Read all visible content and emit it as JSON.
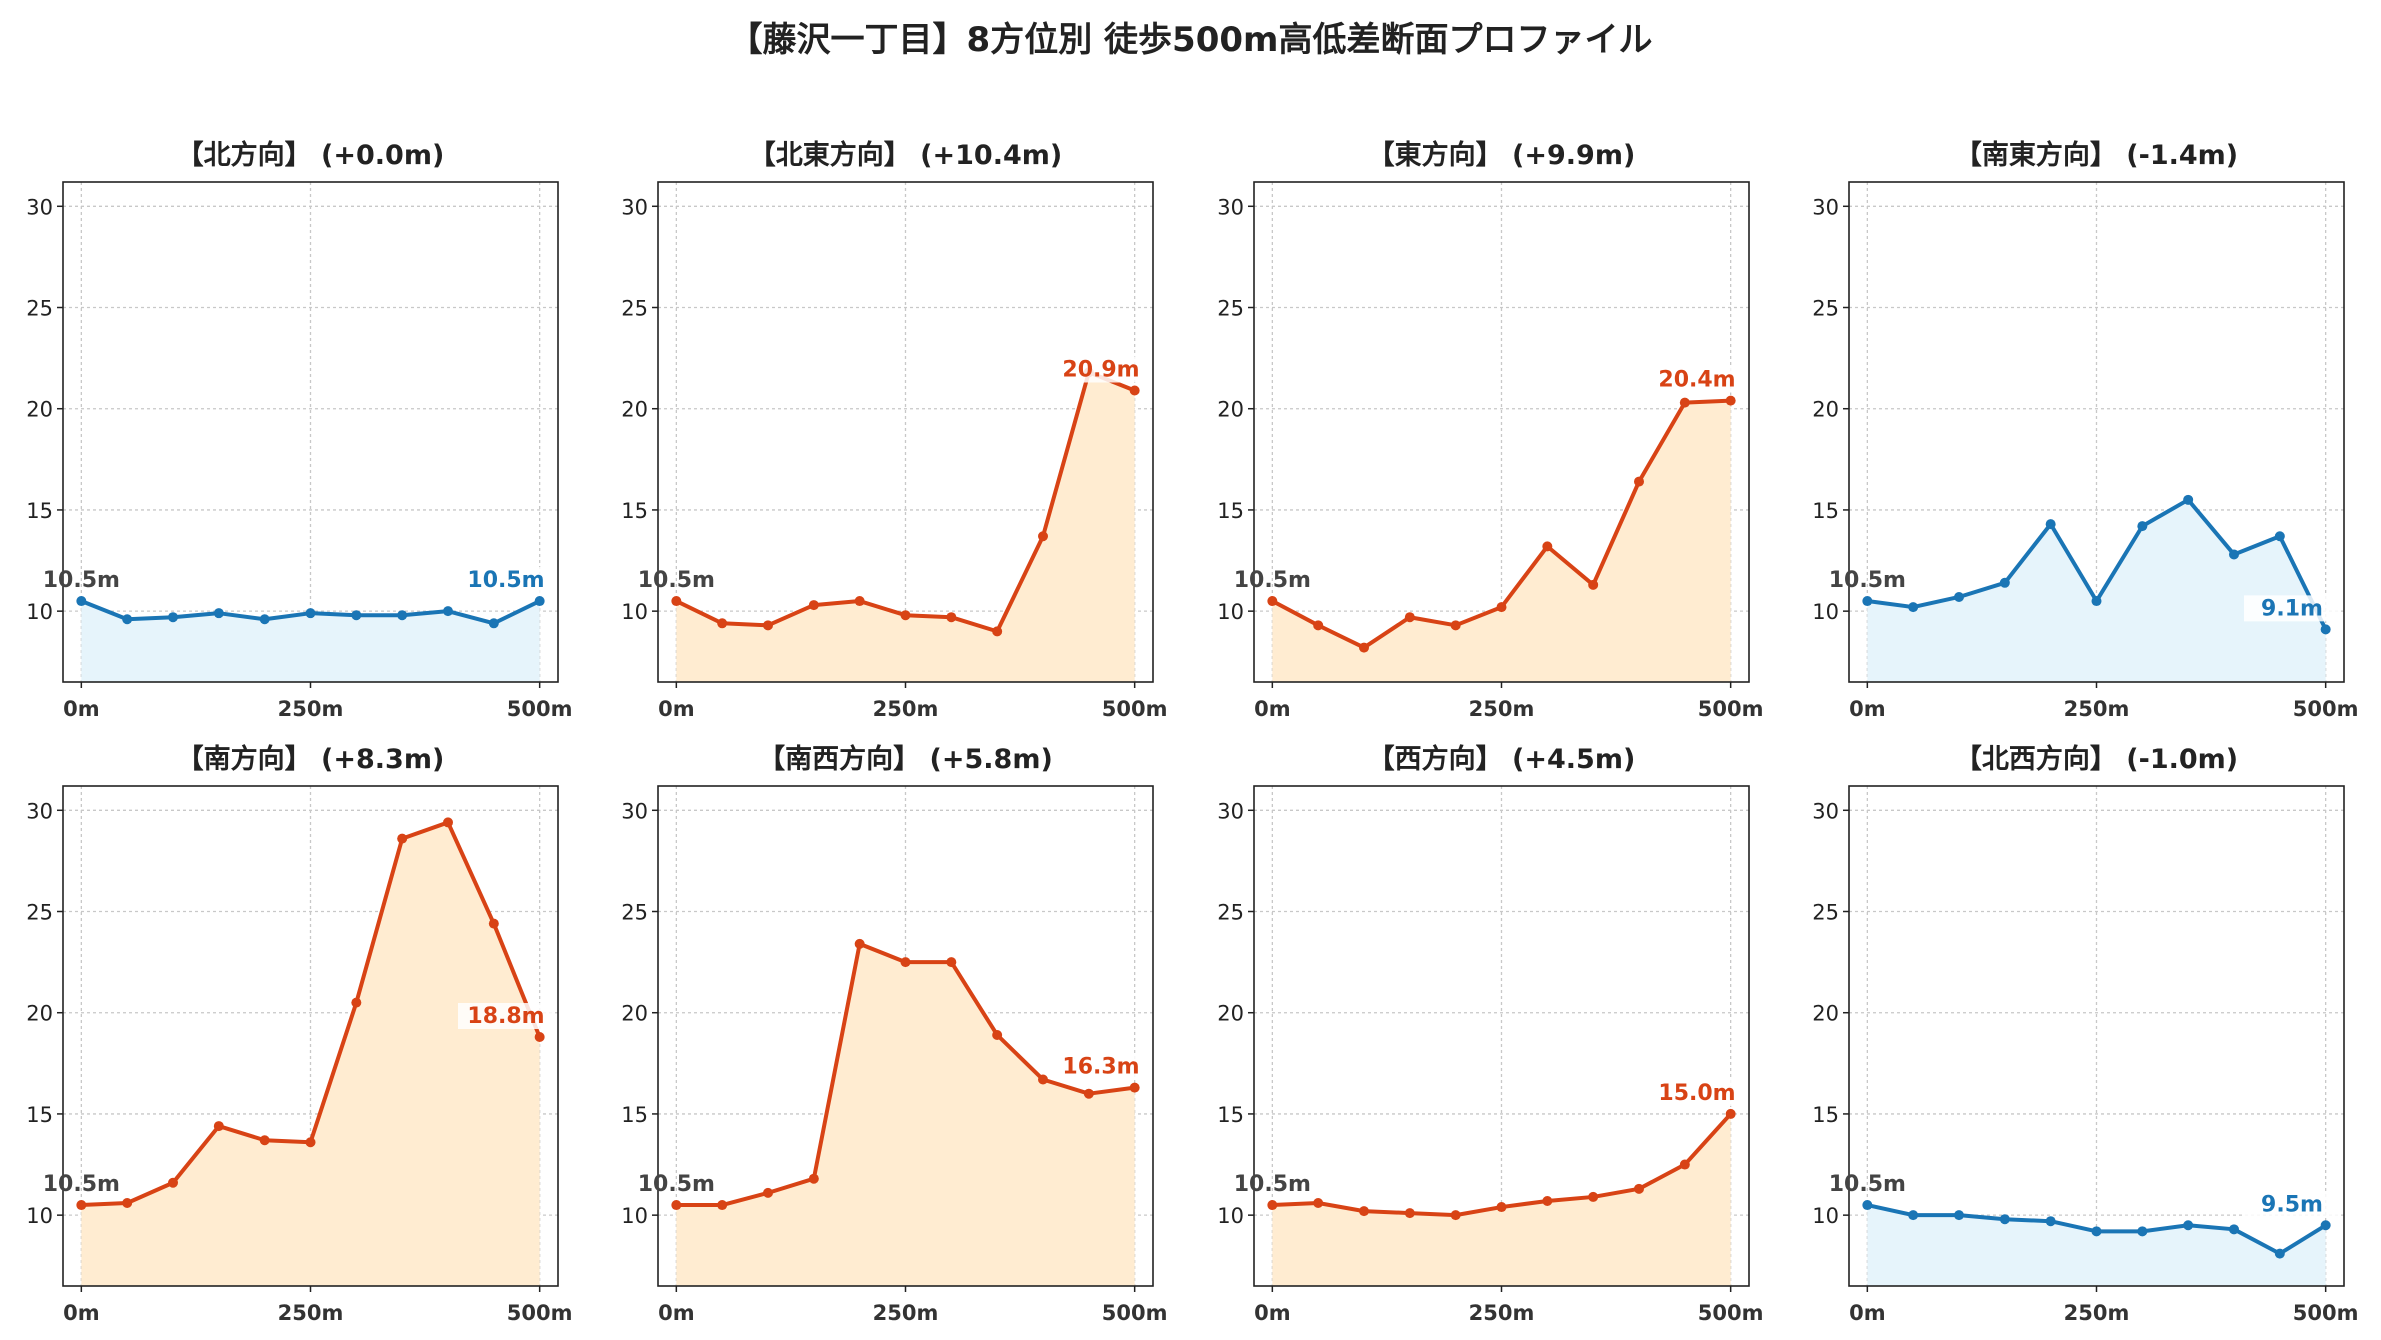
{
  "title": "【藤沢一丁目】8方位別 徒歩500m高低差断面プロファイル",
  "colors": {
    "rise_line": "#d84315",
    "rise_fill": "#ffecd1",
    "fall_line": "#1a75b5",
    "fall_fill": "#e6f4fb",
    "start_label": "#444444",
    "grid": "#c8c8c8"
  },
  "chart_data": [
    {
      "type": "line",
      "title": "【北方向】 (+0.0m)",
      "trend": "fall",
      "x": [
        0,
        50,
        100,
        150,
        200,
        250,
        300,
        350,
        400,
        450,
        500
      ],
      "y": [
        10.5,
        9.6,
        9.7,
        9.9,
        9.6,
        9.9,
        9.8,
        9.8,
        10.0,
        9.4,
        10.5
      ],
      "start_label": "10.5m",
      "end_label": "10.5m",
      "xticks": [
        "0m",
        "250m",
        "500m"
      ],
      "yticks": [
        "10",
        "15",
        "20",
        "25",
        "30"
      ],
      "xlim": [
        -20,
        520
      ],
      "ylim": [
        6.5,
        31.2
      ],
      "grid": true
    },
    {
      "type": "line",
      "title": "【北東方向】 (+10.4m)",
      "trend": "rise",
      "x": [
        0,
        50,
        100,
        150,
        200,
        250,
        300,
        350,
        400,
        450,
        500
      ],
      "y": [
        10.5,
        9.4,
        9.3,
        10.3,
        10.5,
        9.8,
        9.7,
        9.0,
        13.7,
        21.8,
        20.9
      ],
      "start_label": "10.5m",
      "end_label": "20.9m",
      "xticks": [
        "0m",
        "250m",
        "500m"
      ],
      "yticks": [
        "10",
        "15",
        "20",
        "25",
        "30"
      ],
      "xlim": [
        -20,
        520
      ],
      "ylim": [
        6.5,
        31.2
      ],
      "grid": true
    },
    {
      "type": "line",
      "title": "【東方向】 (+9.9m)",
      "trend": "rise",
      "x": [
        0,
        50,
        100,
        150,
        200,
        250,
        300,
        350,
        400,
        450,
        500
      ],
      "y": [
        10.5,
        9.3,
        8.2,
        9.7,
        9.3,
        10.2,
        13.2,
        11.3,
        16.4,
        20.3,
        20.4
      ],
      "start_label": "10.5m",
      "end_label": "20.4m",
      "xticks": [
        "0m",
        "250m",
        "500m"
      ],
      "yticks": [
        "10",
        "15",
        "20",
        "25",
        "30"
      ],
      "xlim": [
        -20,
        520
      ],
      "ylim": [
        6.5,
        31.2
      ],
      "grid": true
    },
    {
      "type": "line",
      "title": "【南東方向】 (-1.4m)",
      "trend": "fall",
      "x": [
        0,
        50,
        100,
        150,
        200,
        250,
        300,
        350,
        400,
        450,
        500
      ],
      "y": [
        10.5,
        10.2,
        10.7,
        11.4,
        14.3,
        10.5,
        14.2,
        15.5,
        12.8,
        13.7,
        9.1
      ],
      "start_label": "10.5m",
      "end_label": "9.1m",
      "xticks": [
        "0m",
        "250m",
        "500m"
      ],
      "yticks": [
        "10",
        "15",
        "20",
        "25",
        "30"
      ],
      "xlim": [
        -20,
        520
      ],
      "ylim": [
        6.5,
        31.2
      ],
      "grid": true
    },
    {
      "type": "line",
      "title": "【南方向】 (+8.3m)",
      "trend": "rise",
      "x": [
        0,
        50,
        100,
        150,
        200,
        250,
        300,
        350,
        400,
        450,
        500
      ],
      "y": [
        10.5,
        10.6,
        11.6,
        14.4,
        13.7,
        13.6,
        20.5,
        28.6,
        29.4,
        24.4,
        18.8
      ],
      "start_label": "10.5m",
      "end_label": "18.8m",
      "xticks": [
        "0m",
        "250m",
        "500m"
      ],
      "yticks": [
        "10",
        "15",
        "20",
        "25",
        "30"
      ],
      "xlim": [
        -20,
        520
      ],
      "ylim": [
        6.5,
        31.2
      ],
      "grid": true
    },
    {
      "type": "line",
      "title": "【南西方向】 (+5.8m)",
      "trend": "rise",
      "x": [
        0,
        50,
        100,
        150,
        200,
        250,
        300,
        350,
        400,
        450,
        500
      ],
      "y": [
        10.5,
        10.5,
        11.1,
        11.8,
        23.4,
        22.5,
        22.5,
        18.9,
        16.7,
        16.0,
        16.3
      ],
      "start_label": "10.5m",
      "end_label": "16.3m",
      "xticks": [
        "0m",
        "250m",
        "500m"
      ],
      "yticks": [
        "10",
        "15",
        "20",
        "25",
        "30"
      ],
      "xlim": [
        -20,
        520
      ],
      "ylim": [
        6.5,
        31.2
      ],
      "grid": true
    },
    {
      "type": "line",
      "title": "【西方向】 (+4.5m)",
      "trend": "rise",
      "x": [
        0,
        50,
        100,
        150,
        200,
        250,
        300,
        350,
        400,
        450,
        500
      ],
      "y": [
        10.5,
        10.6,
        10.2,
        10.1,
        10.0,
        10.4,
        10.7,
        10.9,
        11.3,
        12.5,
        15.0
      ],
      "start_label": "10.5m",
      "end_label": "15.0m",
      "xticks": [
        "0m",
        "250m",
        "500m"
      ],
      "yticks": [
        "10",
        "15",
        "20",
        "25",
        "30"
      ],
      "xlim": [
        -20,
        520
      ],
      "ylim": [
        6.5,
        31.2
      ],
      "grid": true
    },
    {
      "type": "line",
      "title": "【北西方向】 (-1.0m)",
      "trend": "fall",
      "x": [
        0,
        50,
        100,
        150,
        200,
        250,
        300,
        350,
        400,
        450,
        500
      ],
      "y": [
        10.5,
        10.0,
        10.0,
        9.8,
        9.7,
        9.2,
        9.2,
        9.5,
        9.3,
        8.1,
        9.5
      ],
      "start_label": "10.5m",
      "end_label": "9.5m",
      "xticks": [
        "0m",
        "250m",
        "500m"
      ],
      "yticks": [
        "10",
        "15",
        "20",
        "25",
        "30"
      ],
      "xlim": [
        -20,
        520
      ],
      "ylim": [
        6.5,
        31.2
      ],
      "grid": true
    }
  ]
}
